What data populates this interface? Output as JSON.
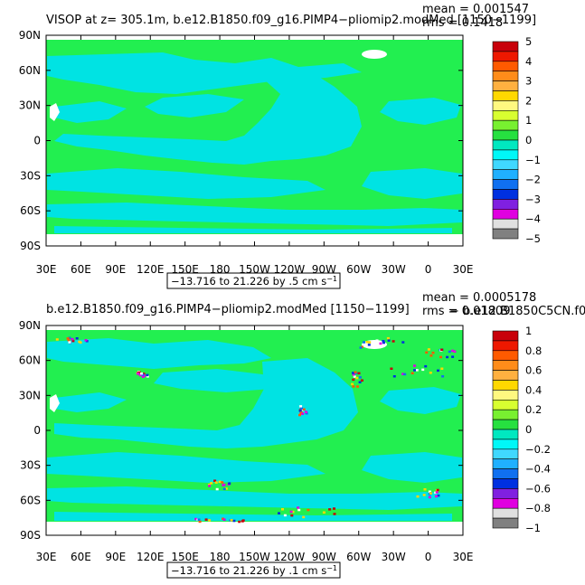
{
  "colors": {
    "ocean_main": "#00e3e3",
    "ocean_alt": "#22ef50",
    "land_mask": "#ffffff",
    "frame": "#000000"
  },
  "chart_data": [
    {
      "type": "heatmap",
      "title": "VISOP at z= 305.1m, b.e12.B1850.f09_g16.PIMP4−pliomip2.modMed [1150−1199]",
      "stats": [
        "mean = 0.001547",
        "rms = 0.1418"
      ],
      "x_ticks": [
        "30E",
        "60E",
        "90E",
        "120E",
        "150E",
        "180",
        "150W",
        "120W",
        "90W",
        "60W",
        "30W",
        "0",
        "30E"
      ],
      "y_ticks": [
        "90N",
        "60N",
        "30N",
        "0",
        "30S",
        "60S",
        "90S"
      ],
      "range_label": "−13.716 to 21.226 by .5 cm s",
      "range_units_sup": "−1",
      "colorbar": {
        "labels": [
          "5",
          "4",
          "3",
          "2",
          "1",
          "0",
          "−1",
          "−2",
          "−3",
          "−4",
          "−5"
        ],
        "colors": [
          "#c8000a",
          "#ee1800",
          "#ff5a00",
          "#ff8c1a",
          "#ffb040",
          "#ffd800",
          "#fff880",
          "#d8ff30",
          "#78f030",
          "#26e040",
          "#00e8c0",
          "#00f8f8",
          "#40d8ff",
          "#20b0ff",
          "#1070f0",
          "#0030e0",
          "#8020e0",
          "#e000e0",
          "#e0e0e0",
          "#808080"
        ]
      },
      "xlim": [
        30,
        390
      ],
      "ylim": [
        -90,
        90
      ],
      "data_lat_range": [
        -80,
        88
      ]
    },
    {
      "type": "heatmap",
      "title": "b.e12.B1850.f09_g16.PIMP4−pliomip2.modMed [1150−1199]",
      "title_right": "− b.e12.B1850C5CN.f0",
      "stats": [
        "mean = 0.0005178",
        "rms = 0.01809"
      ],
      "x_ticks": [
        "30E",
        "60E",
        "90E",
        "120E",
        "150E",
        "180",
        "150W",
        "120W",
        "90W",
        "60W",
        "30W",
        "0",
        "30E"
      ],
      "y_ticks": [
        "90N",
        "60N",
        "30N",
        "0",
        "30S",
        "60S",
        "90S"
      ],
      "range_label": "−13.716 to 21.226 by .1 cm s",
      "range_units_sup": "−1",
      "colorbar": {
        "labels": [
          "1",
          "0.8",
          "0.6",
          "0.4",
          "0.2",
          "0",
          "−0.2",
          "−0.4",
          "−0.6",
          "−0.8",
          "−1"
        ],
        "colors": [
          "#c8000a",
          "#ee1800",
          "#ff5a00",
          "#ff8c1a",
          "#ffb040",
          "#ffd800",
          "#fff880",
          "#d8ff30",
          "#78f030",
          "#26e040",
          "#00e8c0",
          "#00f8f8",
          "#40d8ff",
          "#20b0ff",
          "#1070f0",
          "#0030e0",
          "#8020e0",
          "#e000e0",
          "#e0e0e0",
          "#808080"
        ]
      },
      "xlim": [
        30,
        390
      ],
      "ylim": [
        -90,
        90
      ],
      "data_lat_range": [
        -80,
        88
      ]
    }
  ]
}
